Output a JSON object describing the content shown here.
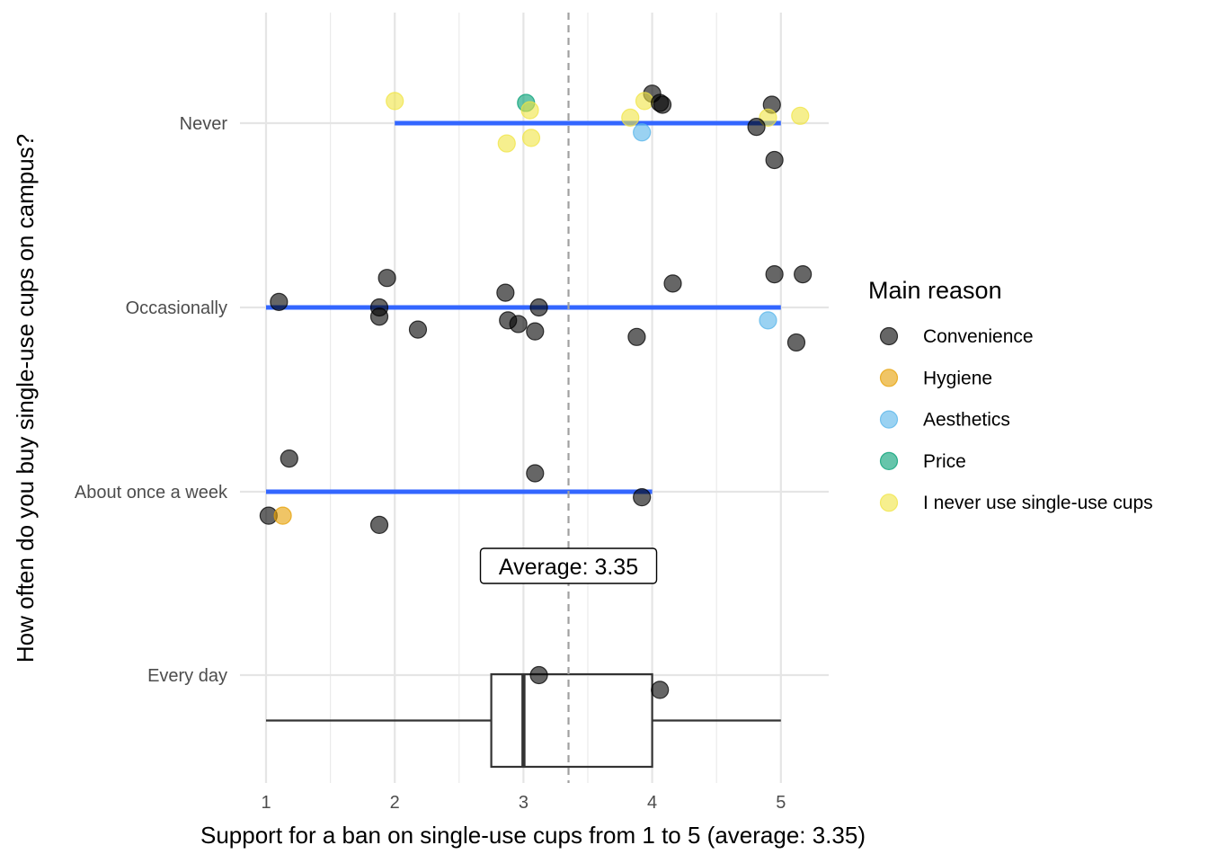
{
  "chart_data": {
    "type": "scatter",
    "xlabel": "Support for a ban on single-use cups from 1 to 5 (average: 3.35)",
    "ylabel": "How often do you buy single-use cups on campus?",
    "x_ticks": [
      "1",
      "2",
      "3",
      "4",
      "5"
    ],
    "xlim": [
      0.9,
      5.37
    ],
    "categories": [
      "Never",
      "Occasionally",
      "About once a week",
      "Every day"
    ],
    "grid": true,
    "legend": {
      "title": "Main reason",
      "position": "right",
      "entries": [
        {
          "name": "Convenience",
          "color": "#000000"
        },
        {
          "name": "Hygiene",
          "color": "#E69F00"
        },
        {
          "name": "Aesthetics",
          "color": "#56B4E9"
        },
        {
          "name": "Price",
          "color": "#009E73"
        },
        {
          "name": "I never use single-use cups",
          "color": "#F0E442"
        }
      ]
    },
    "average": {
      "value": 3.35,
      "label": "Average: 3.35"
    },
    "ranges": [
      {
        "category": "Never",
        "min": 2,
        "max": 5
      },
      {
        "category": "Occasionally",
        "min": 1,
        "max": 5
      },
      {
        "category": "About once a week",
        "min": 1,
        "max": 4
      }
    ],
    "boxplot": {
      "category": "Every day",
      "min": 1,
      "q1": 2.75,
      "median": 3,
      "q3": 4,
      "max": 5
    },
    "points": [
      {
        "category": "Never",
        "x": 2.0,
        "jitter": 0.12,
        "reason": "I never use single-use cups"
      },
      {
        "category": "Never",
        "x": 3.02,
        "jitter": 0.11,
        "reason": "Price"
      },
      {
        "category": "Never",
        "x": 3.05,
        "jitter": 0.07,
        "reason": "I never use single-use cups"
      },
      {
        "category": "Never",
        "x": 2.87,
        "jitter": -0.11,
        "reason": "I never use single-use cups"
      },
      {
        "category": "Never",
        "x": 3.06,
        "jitter": -0.08,
        "reason": "I never use single-use cups"
      },
      {
        "category": "Never",
        "x": 4.0,
        "jitter": 0.16,
        "reason": "Convenience"
      },
      {
        "category": "Never",
        "x": 3.94,
        "jitter": 0.12,
        "reason": "I never use single-use cups"
      },
      {
        "category": "Never",
        "x": 4.06,
        "jitter": 0.11,
        "reason": "Convenience"
      },
      {
        "category": "Never",
        "x": 4.08,
        "jitter": 0.1,
        "reason": "Convenience"
      },
      {
        "category": "Never",
        "x": 3.83,
        "jitter": 0.03,
        "reason": "I never use single-use cups"
      },
      {
        "category": "Never",
        "x": 3.92,
        "jitter": -0.05,
        "reason": "Aesthetics"
      },
      {
        "category": "Never",
        "x": 4.93,
        "jitter": 0.1,
        "reason": "Convenience"
      },
      {
        "category": "Never",
        "x": 4.9,
        "jitter": 0.03,
        "reason": "I never use single-use cups"
      },
      {
        "category": "Never",
        "x": 5.15,
        "jitter": 0.04,
        "reason": "I never use single-use cups"
      },
      {
        "category": "Never",
        "x": 4.81,
        "jitter": -0.02,
        "reason": "Convenience"
      },
      {
        "category": "Never",
        "x": 4.95,
        "jitter": -0.2,
        "reason": "Convenience"
      },
      {
        "category": "Occasionally",
        "x": 1.1,
        "jitter": 0.03,
        "reason": "Convenience"
      },
      {
        "category": "Occasionally",
        "x": 1.94,
        "jitter": 0.16,
        "reason": "Convenience"
      },
      {
        "category": "Occasionally",
        "x": 1.88,
        "jitter": 0.0,
        "reason": "Convenience"
      },
      {
        "category": "Occasionally",
        "x": 1.88,
        "jitter": -0.05,
        "reason": "Convenience"
      },
      {
        "category": "Occasionally",
        "x": 2.18,
        "jitter": -0.12,
        "reason": "Convenience"
      },
      {
        "category": "Occasionally",
        "x": 2.86,
        "jitter": 0.08,
        "reason": "Convenience"
      },
      {
        "category": "Occasionally",
        "x": 2.88,
        "jitter": -0.07,
        "reason": "Convenience"
      },
      {
        "category": "Occasionally",
        "x": 2.96,
        "jitter": -0.09,
        "reason": "Convenience"
      },
      {
        "category": "Occasionally",
        "x": 3.12,
        "jitter": 0.0,
        "reason": "Convenience"
      },
      {
        "category": "Occasionally",
        "x": 3.09,
        "jitter": -0.13,
        "reason": "Convenience"
      },
      {
        "category": "Occasionally",
        "x": 4.16,
        "jitter": 0.13,
        "reason": "Convenience"
      },
      {
        "category": "Occasionally",
        "x": 3.88,
        "jitter": -0.16,
        "reason": "Convenience"
      },
      {
        "category": "Occasionally",
        "x": 4.95,
        "jitter": 0.18,
        "reason": "Convenience"
      },
      {
        "category": "Occasionally",
        "x": 5.17,
        "jitter": 0.18,
        "reason": "Convenience"
      },
      {
        "category": "Occasionally",
        "x": 4.9,
        "jitter": -0.07,
        "reason": "Aesthetics"
      },
      {
        "category": "Occasionally",
        "x": 5.12,
        "jitter": -0.19,
        "reason": "Convenience"
      },
      {
        "category": "About once a week",
        "x": 1.18,
        "jitter": 0.18,
        "reason": "Convenience"
      },
      {
        "category": "About once a week",
        "x": 1.02,
        "jitter": -0.13,
        "reason": "Convenience"
      },
      {
        "category": "About once a week",
        "x": 1.13,
        "jitter": -0.13,
        "reason": "Hygiene"
      },
      {
        "category": "About once a week",
        "x": 1.88,
        "jitter": -0.18,
        "reason": "Convenience"
      },
      {
        "category": "About once a week",
        "x": 3.09,
        "jitter": 0.1,
        "reason": "Convenience"
      },
      {
        "category": "About once a week",
        "x": 3.92,
        "jitter": -0.03,
        "reason": "Convenience"
      },
      {
        "category": "Every day",
        "x": 3.12,
        "jitter": 0.0,
        "reason": "Convenience"
      },
      {
        "category": "Every day",
        "x": 4.06,
        "jitter": -0.08,
        "reason": "Convenience"
      }
    ]
  }
}
